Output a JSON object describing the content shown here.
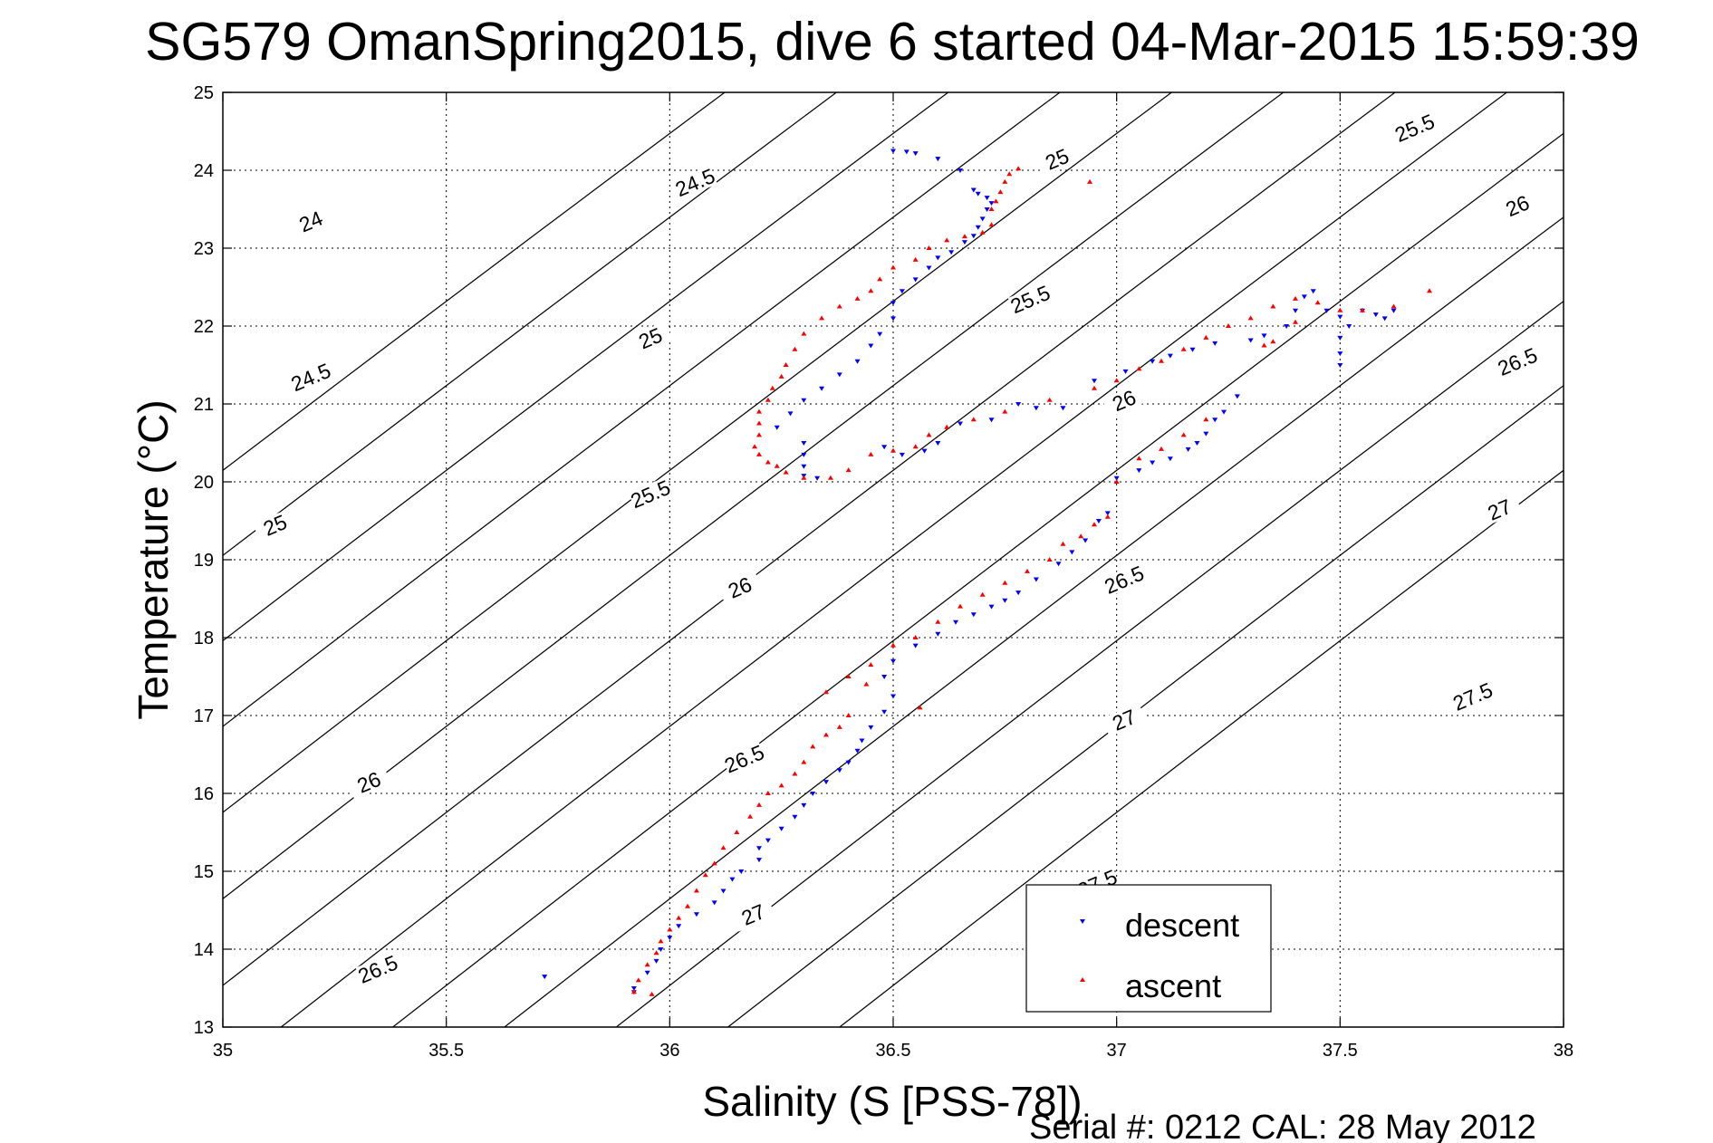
{
  "chart_data": {
    "type": "scatter",
    "title": "SG579 OmanSpring2015, dive 6 started 04-Mar-2015 15:59:39",
    "xlabel": "Salinity (S [PSS-78])",
    "ylabel": "Temperature (°C)",
    "xlim": [
      35,
      38
    ],
    "ylim": [
      13,
      25
    ],
    "xticks": [
      "35",
      "35.5",
      "36",
      "36.5",
      "37",
      "37.5",
      "38"
    ],
    "yticks": [
      "13",
      "14",
      "15",
      "16",
      "17",
      "18",
      "19",
      "20",
      "21",
      "22",
      "23",
      "24",
      "25"
    ],
    "grid": true,
    "legend_position": "bottom-right",
    "footer": "Serial #: 0212  CAL: 28 May 2012",
    "contours": [
      {
        "level": "24",
        "labels": [
          [
            35.2,
            23.3
          ]
        ]
      },
      {
        "level": "24.5",
        "labels": [
          [
            35.2,
            21.3
          ],
          [
            36.06,
            23.8
          ]
        ]
      },
      {
        "level": "25",
        "labels": [
          [
            35.12,
            19.4
          ],
          [
            35.96,
            21.8
          ],
          [
            36.87,
            24.1
          ]
        ]
      },
      {
        "level": "25.5",
        "labels": [
          [
            35.96,
            19.8
          ],
          [
            36.81,
            22.3
          ],
          [
            37.67,
            24.5
          ]
        ]
      },
      {
        "level": "26",
        "labels": [
          [
            35.33,
            16.1
          ],
          [
            36.16,
            18.6
          ],
          [
            37.02,
            21.0
          ],
          [
            37.9,
            23.5
          ]
        ]
      },
      {
        "level": "26.5",
        "labels": [
          [
            35.35,
            13.7
          ],
          [
            36.17,
            16.4
          ],
          [
            37.02,
            18.7
          ],
          [
            37.9,
            21.5
          ]
        ]
      },
      {
        "level": "27",
        "labels": [
          [
            36.19,
            14.4
          ],
          [
            37.02,
            16.9
          ],
          [
            37.86,
            19.6
          ]
        ]
      },
      {
        "level": "27.5",
        "labels": [
          [
            36.96,
            14.8
          ],
          [
            37.8,
            17.2
          ]
        ]
      }
    ],
    "series": [
      {
        "name": "descent",
        "color": "#0000ff",
        "marker": "triangle-down",
        "points": [
          [
            36.5,
            24.25
          ],
          [
            36.53,
            24.24
          ],
          [
            36.55,
            24.22
          ],
          [
            36.6,
            24.15
          ],
          [
            36.65,
            24.0
          ],
          [
            36.68,
            23.75
          ],
          [
            36.69,
            23.7
          ],
          [
            36.71,
            23.65
          ],
          [
            36.72,
            23.58
          ],
          [
            36.71,
            23.5
          ],
          [
            36.7,
            23.38
          ],
          [
            36.69,
            23.27
          ],
          [
            36.68,
            23.16
          ],
          [
            36.66,
            23.08
          ],
          [
            36.63,
            22.95
          ],
          [
            36.6,
            22.88
          ],
          [
            36.58,
            22.75
          ],
          [
            36.55,
            22.6
          ],
          [
            36.52,
            22.45
          ],
          [
            36.5,
            22.3
          ],
          [
            36.5,
            22.1
          ],
          [
            36.47,
            21.9
          ],
          [
            36.45,
            21.75
          ],
          [
            36.42,
            21.55
          ],
          [
            36.38,
            21.38
          ],
          [
            36.34,
            21.2
          ],
          [
            36.3,
            21.05
          ],
          [
            36.27,
            20.88
          ],
          [
            36.24,
            20.7
          ],
          [
            36.3,
            20.5
          ],
          [
            36.3,
            20.35
          ],
          [
            36.3,
            20.2
          ],
          [
            36.3,
            20.08
          ],
          [
            36.33,
            20.05
          ],
          [
            36.48,
            20.45
          ],
          [
            36.52,
            20.35
          ],
          [
            36.57,
            20.4
          ],
          [
            36.6,
            20.5
          ],
          [
            36.65,
            20.75
          ],
          [
            36.72,
            20.8
          ],
          [
            36.78,
            21.0
          ],
          [
            36.82,
            20.95
          ],
          [
            36.88,
            20.95
          ],
          [
            36.95,
            21.3
          ],
          [
            37.02,
            21.42
          ],
          [
            37.08,
            21.55
          ],
          [
            37.12,
            21.62
          ],
          [
            37.17,
            21.7
          ],
          [
            37.22,
            21.78
          ],
          [
            37.3,
            21.82
          ],
          [
            37.33,
            21.88
          ],
          [
            37.38,
            22.0
          ],
          [
            37.4,
            22.2
          ],
          [
            37.42,
            22.38
          ],
          [
            37.44,
            22.45
          ],
          [
            37.47,
            22.2
          ],
          [
            37.5,
            22.12
          ],
          [
            37.52,
            22.0
          ],
          [
            37.5,
            21.85
          ],
          [
            37.5,
            21.65
          ],
          [
            37.5,
            21.5
          ],
          [
            37.55,
            22.2
          ],
          [
            37.58,
            22.15
          ],
          [
            37.6,
            22.1
          ],
          [
            37.62,
            22.2
          ],
          [
            37.27,
            21.1
          ],
          [
            37.24,
            20.9
          ],
          [
            37.22,
            20.8
          ],
          [
            37.2,
            20.62
          ],
          [
            37.18,
            20.5
          ],
          [
            37.16,
            20.42
          ],
          [
            37.12,
            20.3
          ],
          [
            37.08,
            20.25
          ],
          [
            37.05,
            20.15
          ],
          [
            37.0,
            20.05
          ],
          [
            36.98,
            19.6
          ],
          [
            36.96,
            19.5
          ],
          [
            36.93,
            19.25
          ],
          [
            36.9,
            19.1
          ],
          [
            36.87,
            18.95
          ],
          [
            36.82,
            18.75
          ],
          [
            36.78,
            18.58
          ],
          [
            36.75,
            18.48
          ],
          [
            36.72,
            18.4
          ],
          [
            36.68,
            18.3
          ],
          [
            36.64,
            18.2
          ],
          [
            36.6,
            18.05
          ],
          [
            36.55,
            17.9
          ],
          [
            36.5,
            17.7
          ],
          [
            36.48,
            17.5
          ],
          [
            36.5,
            17.25
          ],
          [
            36.48,
            17.05
          ],
          [
            36.45,
            16.85
          ],
          [
            36.43,
            16.68
          ],
          [
            36.42,
            16.55
          ],
          [
            36.4,
            16.4
          ],
          [
            36.38,
            16.3
          ],
          [
            36.35,
            16.15
          ],
          [
            36.32,
            16.0
          ],
          [
            36.3,
            15.85
          ],
          [
            36.28,
            15.7
          ],
          [
            36.25,
            15.55
          ],
          [
            36.22,
            15.4
          ],
          [
            36.2,
            15.3
          ],
          [
            36.2,
            15.15
          ],
          [
            36.16,
            15.0
          ],
          [
            36.14,
            14.9
          ],
          [
            36.12,
            14.75
          ],
          [
            36.1,
            14.6
          ],
          [
            36.06,
            14.45
          ],
          [
            36.02,
            14.3
          ],
          [
            36.0,
            14.15
          ],
          [
            35.98,
            14.0
          ],
          [
            35.97,
            13.85
          ],
          [
            35.95,
            13.7
          ],
          [
            35.92,
            13.5
          ],
          [
            35.92,
            13.45
          ],
          [
            35.72,
            13.65
          ]
        ]
      },
      {
        "name": "ascent",
        "color": "#ff0000",
        "marker": "triangle-up",
        "points": [
          [
            36.78,
            24.02
          ],
          [
            36.76,
            23.95
          ],
          [
            36.75,
            23.85
          ],
          [
            36.74,
            23.72
          ],
          [
            36.73,
            23.6
          ],
          [
            36.72,
            23.5
          ],
          [
            36.72,
            23.3
          ],
          [
            36.7,
            23.2
          ],
          [
            36.66,
            23.15
          ],
          [
            36.62,
            23.1
          ],
          [
            36.58,
            23.0
          ],
          [
            36.55,
            22.85
          ],
          [
            36.5,
            22.75
          ],
          [
            36.47,
            22.6
          ],
          [
            36.45,
            22.45
          ],
          [
            36.42,
            22.35
          ],
          [
            36.38,
            22.25
          ],
          [
            36.34,
            22.1
          ],
          [
            36.3,
            21.9
          ],
          [
            36.28,
            21.7
          ],
          [
            36.26,
            21.5
          ],
          [
            36.25,
            21.35
          ],
          [
            36.23,
            21.2
          ],
          [
            36.22,
            21.05
          ],
          [
            36.2,
            20.9
          ],
          [
            36.2,
            20.75
          ],
          [
            36.2,
            20.6
          ],
          [
            36.19,
            20.45
          ],
          [
            36.2,
            20.35
          ],
          [
            36.22,
            20.25
          ],
          [
            36.24,
            20.2
          ],
          [
            36.26,
            20.12
          ],
          [
            36.3,
            20.05
          ],
          [
            36.36,
            20.05
          ],
          [
            36.4,
            20.15
          ],
          [
            36.45,
            20.35
          ],
          [
            36.5,
            20.4
          ],
          [
            36.55,
            20.45
          ],
          [
            36.58,
            20.6
          ],
          [
            36.62,
            20.7
          ],
          [
            36.68,
            20.8
          ],
          [
            36.75,
            20.9
          ],
          [
            36.85,
            21.05
          ],
          [
            36.95,
            21.2
          ],
          [
            37.0,
            21.3
          ],
          [
            37.05,
            21.45
          ],
          [
            37.1,
            21.55
          ],
          [
            37.15,
            21.7
          ],
          [
            37.2,
            21.85
          ],
          [
            37.25,
            22.0
          ],
          [
            37.3,
            22.1
          ],
          [
            37.35,
            22.25
          ],
          [
            37.4,
            22.35
          ],
          [
            37.45,
            22.3
          ],
          [
            37.5,
            22.2
          ],
          [
            37.55,
            22.2
          ],
          [
            37.62,
            22.25
          ],
          [
            37.7,
            22.45
          ],
          [
            37.4,
            22.05
          ],
          [
            37.33,
            21.75
          ],
          [
            37.35,
            21.8
          ],
          [
            37.2,
            20.8
          ],
          [
            37.15,
            20.6
          ],
          [
            37.1,
            20.42
          ],
          [
            37.05,
            20.3
          ],
          [
            37.0,
            20.0
          ],
          [
            36.98,
            19.55
          ],
          [
            36.95,
            19.45
          ],
          [
            36.92,
            19.3
          ],
          [
            36.88,
            19.2
          ],
          [
            36.85,
            19.0
          ],
          [
            36.8,
            18.85
          ],
          [
            36.75,
            18.7
          ],
          [
            36.7,
            18.55
          ],
          [
            36.65,
            18.4
          ],
          [
            36.6,
            18.2
          ],
          [
            36.55,
            18.0
          ],
          [
            36.5,
            17.9
          ],
          [
            36.45,
            17.65
          ],
          [
            36.4,
            17.5
          ],
          [
            36.35,
            17.3
          ],
          [
            36.4,
            17.0
          ],
          [
            36.38,
            16.85
          ],
          [
            36.35,
            16.75
          ],
          [
            36.32,
            16.6
          ],
          [
            36.3,
            16.4
          ],
          [
            36.28,
            16.25
          ],
          [
            36.25,
            16.1
          ],
          [
            36.22,
            16.0
          ],
          [
            36.2,
            15.85
          ],
          [
            36.18,
            15.7
          ],
          [
            36.15,
            15.5
          ],
          [
            36.12,
            15.3
          ],
          [
            36.1,
            15.1
          ],
          [
            36.08,
            14.95
          ],
          [
            36.06,
            14.75
          ],
          [
            36.04,
            14.55
          ],
          [
            36.02,
            14.4
          ],
          [
            36.0,
            14.25
          ],
          [
            35.98,
            14.1
          ],
          [
            35.97,
            13.95
          ],
          [
            35.95,
            13.8
          ],
          [
            35.93,
            13.6
          ],
          [
            35.92,
            13.45
          ],
          [
            35.96,
            13.42
          ],
          [
            36.56,
            17.1
          ],
          [
            36.44,
            17.4
          ],
          [
            36.94,
            23.85
          ]
        ]
      }
    ]
  }
}
